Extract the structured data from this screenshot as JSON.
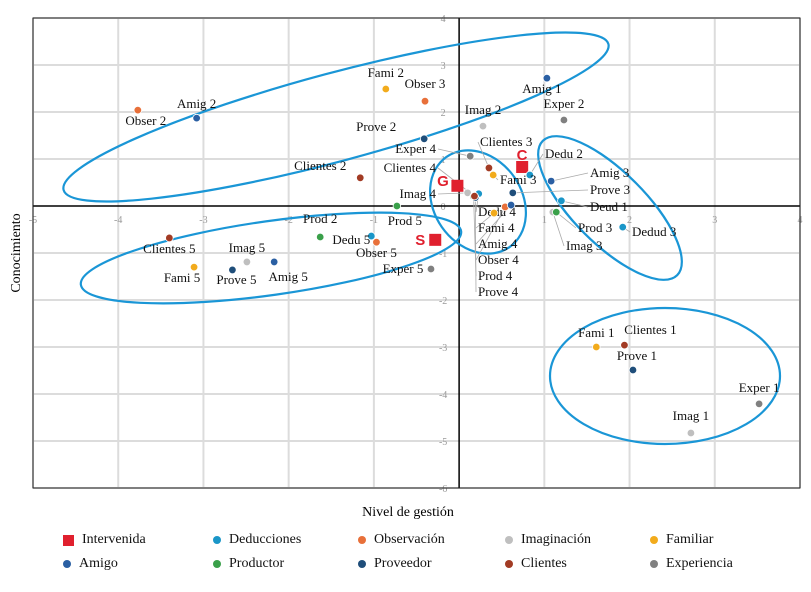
{
  "chart_data": {
    "type": "scatter",
    "xlabel": "Nivel de gestión",
    "ylabel": "Conocimiento",
    "xlim": [
      -5,
      4
    ],
    "ylim": [
      -6,
      4
    ],
    "xticks": [
      -5,
      -4,
      -3,
      -2,
      -1,
      0,
      1,
      2,
      3,
      4
    ],
    "yticks": [
      -6,
      -5,
      -4,
      -3,
      -2,
      -1,
      0,
      1,
      2,
      3,
      4
    ],
    "grid": true,
    "legend_position": "bottom",
    "series": [
      {
        "name": "Intervenida",
        "color": "#e0202e",
        "marker": "square",
        "points": [
          {
            "label": "G",
            "x": -0.02,
            "y": 0.43
          },
          {
            "label": "C",
            "x": 0.74,
            "y": 0.83
          },
          {
            "label": "S",
            "x": -0.28,
            "y": -0.72
          }
        ]
      },
      {
        "name": "Deducciones",
        "color": "#1a96c8",
        "points": [
          {
            "label": "Deud 1",
            "x": 1.2,
            "y": 0.11
          },
          {
            "label": "Dedu 2",
            "x": 0.83,
            "y": 0.66
          },
          {
            "label": "Dedud 3",
            "x": 1.92,
            "y": -0.45
          },
          {
            "label": "Dedu 4",
            "x": 0.23,
            "y": 0.26
          },
          {
            "label": "Dedu 5",
            "x": -1.03,
            "y": -0.64
          }
        ]
      },
      {
        "name": "Observación",
        "color": "#e8703a",
        "points": [
          {
            "label": "Obser 2",
            "x": -3.77,
            "y": 2.04
          },
          {
            "label": "Obser 3",
            "x": -0.4,
            "y": 2.23
          },
          {
            "label": "Obser 4",
            "x": 0.54,
            "y": -0.02
          },
          {
            "label": "Obser 5",
            "x": -0.97,
            "y": -0.77
          }
        ]
      },
      {
        "name": "Imaginación",
        "color": "#bfbfbf",
        "points": [
          {
            "label": "Imag 1",
            "x": 2.72,
            "y": -4.83
          },
          {
            "label": "Imag 2",
            "x": 0.28,
            "y": 1.7
          },
          {
            "label": "Imag 3",
            "x": 1.1,
            "y": -0.13
          },
          {
            "label": "Imag 4",
            "x": 0.1,
            "y": 0.28
          },
          {
            "label": "Imag 5",
            "x": -2.49,
            "y": -1.19
          }
        ]
      },
      {
        "name": "Familiar",
        "color": "#f2ab1c",
        "points": [
          {
            "label": "Fami 1",
            "x": 1.61,
            "y": -3.0
          },
          {
            "label": "Fami 2",
            "x": -0.86,
            "y": 2.49
          },
          {
            "label": "Fami 3",
            "x": 0.4,
            "y": 0.66
          },
          {
            "label": "Fami 4",
            "x": 0.41,
            "y": -0.15
          },
          {
            "label": "Fami 5",
            "x": -3.11,
            "y": -1.3
          }
        ]
      },
      {
        "name": "Amigo",
        "color": "#2a5fa3",
        "points": [
          {
            "label": "Amig 1",
            "x": 1.03,
            "y": 2.72
          },
          {
            "label": "Amig 2",
            "x": -3.08,
            "y": 1.87
          },
          {
            "label": "Amig 3",
            "x": 1.08,
            "y": 0.53
          },
          {
            "label": "Amig 4",
            "x": 0.61,
            "y": 0.02
          },
          {
            "label": "Amig 5",
            "x": -2.17,
            "y": -1.19
          }
        ]
      },
      {
        "name": "Productor",
        "color": "#3aa04a",
        "points": [
          {
            "label": "Prod 2",
            "x": -1.63,
            "y": -0.66
          },
          {
            "label": "Prod 3",
            "x": 1.14,
            "y": -0.13
          },
          {
            "label": "Prod 4",
            "x": 0.17,
            "y": 0.2
          },
          {
            "label": "Prod 5",
            "x": -0.73,
            "y": 0.0
          }
        ]
      },
      {
        "name": "Proveedor",
        "color": "#1f4e7a",
        "points": [
          {
            "label": "Prove 1",
            "x": 2.04,
            "y": -3.49
          },
          {
            "label": "Prove 2",
            "x": -0.41,
            "y": 1.43
          },
          {
            "label": "Prove 3",
            "x": 0.63,
            "y": 0.28
          },
          {
            "label": "Prove 4",
            "x": 0.19,
            "y": 0.18
          },
          {
            "label": "Prove 5",
            "x": -2.66,
            "y": -1.36
          }
        ]
      },
      {
        "name": "Clientes",
        "color": "#a23b24",
        "points": [
          {
            "label": "Clientes 1",
            "x": 1.94,
            "y": -2.96
          },
          {
            "label": "Clientes 2",
            "x": -1.16,
            "y": 0.6
          },
          {
            "label": "Clientes 3",
            "x": 0.35,
            "y": 0.81
          },
          {
            "label": "Clientes 4",
            "x": 0.18,
            "y": 0.21
          },
          {
            "label": "Clientes 5",
            "x": -3.4,
            "y": -0.68
          }
        ]
      },
      {
        "name": "Experiencia",
        "color": "#808080",
        "points": [
          {
            "label": "Exper 1",
            "x": 3.52,
            "y": -4.21
          },
          {
            "label": "Exper 2",
            "x": 1.23,
            "y": 1.83
          },
          {
            "label": "Exper 4",
            "x": 0.13,
            "y": 1.06
          },
          {
            "label": "Exper 5",
            "x": -0.33,
            "y": -1.34
          }
        ]
      }
    ]
  }
}
